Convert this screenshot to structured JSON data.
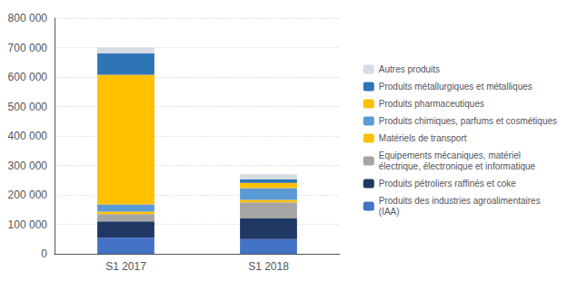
{
  "chart_data": {
    "type": "bar",
    "stacked": true,
    "categories": [
      "S1 2017",
      "S1 2018"
    ],
    "series": [
      {
        "name": "Produits des industries agroalimentaires\n(IAA)",
        "color": "#4472C4",
        "values": [
          55000,
          50000
        ]
      },
      {
        "name": "Produits pétroliers raffinés et coke",
        "color": "#1F3864",
        "values": [
          55000,
          70000
        ]
      },
      {
        "name": "Equipements mécaniques, matériel\nélectrique, électronique et informatique",
        "color": "#A5A5A5",
        "values": [
          25000,
          55000
        ]
      },
      {
        "name": "Matériels de transport",
        "color": "#FFC000",
        "values": [
          8000,
          8000
        ]
      },
      {
        "name": "Produits chimiques, parfums et cosmétiques",
        "color": "#5B9BD5",
        "values": [
          25000,
          40000
        ]
      },
      {
        "name": "Produits pharmaceutiques",
        "color": "#FFC000",
        "values": [
          440000,
          18000
        ]
      },
      {
        "name": "Produits métallurgiques et métalliques",
        "color": "#2E75B6",
        "values": [
          72000,
          12000
        ]
      },
      {
        "name": "Autres produits",
        "color": "#D6DCE4",
        "values": [
          20000,
          17000
        ]
      }
    ],
    "ylim": [
      0,
      800000
    ],
    "yticks": [
      0,
      {
        "value": 100000,
        "label": "100 000"
      },
      {
        "value": 200000,
        "label": "200 000"
      },
      {
        "value": 300000,
        "label": "300 000"
      },
      {
        "value": 400000,
        "label": "400 000"
      },
      {
        "value": 500000,
        "label": "500 000"
      },
      {
        "value": 600000,
        "label": "600 000"
      },
      {
        "value": 700000,
        "label": "700 000"
      },
      {
        "value": 800000,
        "label": "800 000"
      }
    ],
    "grid": true,
    "legend": "right"
  }
}
